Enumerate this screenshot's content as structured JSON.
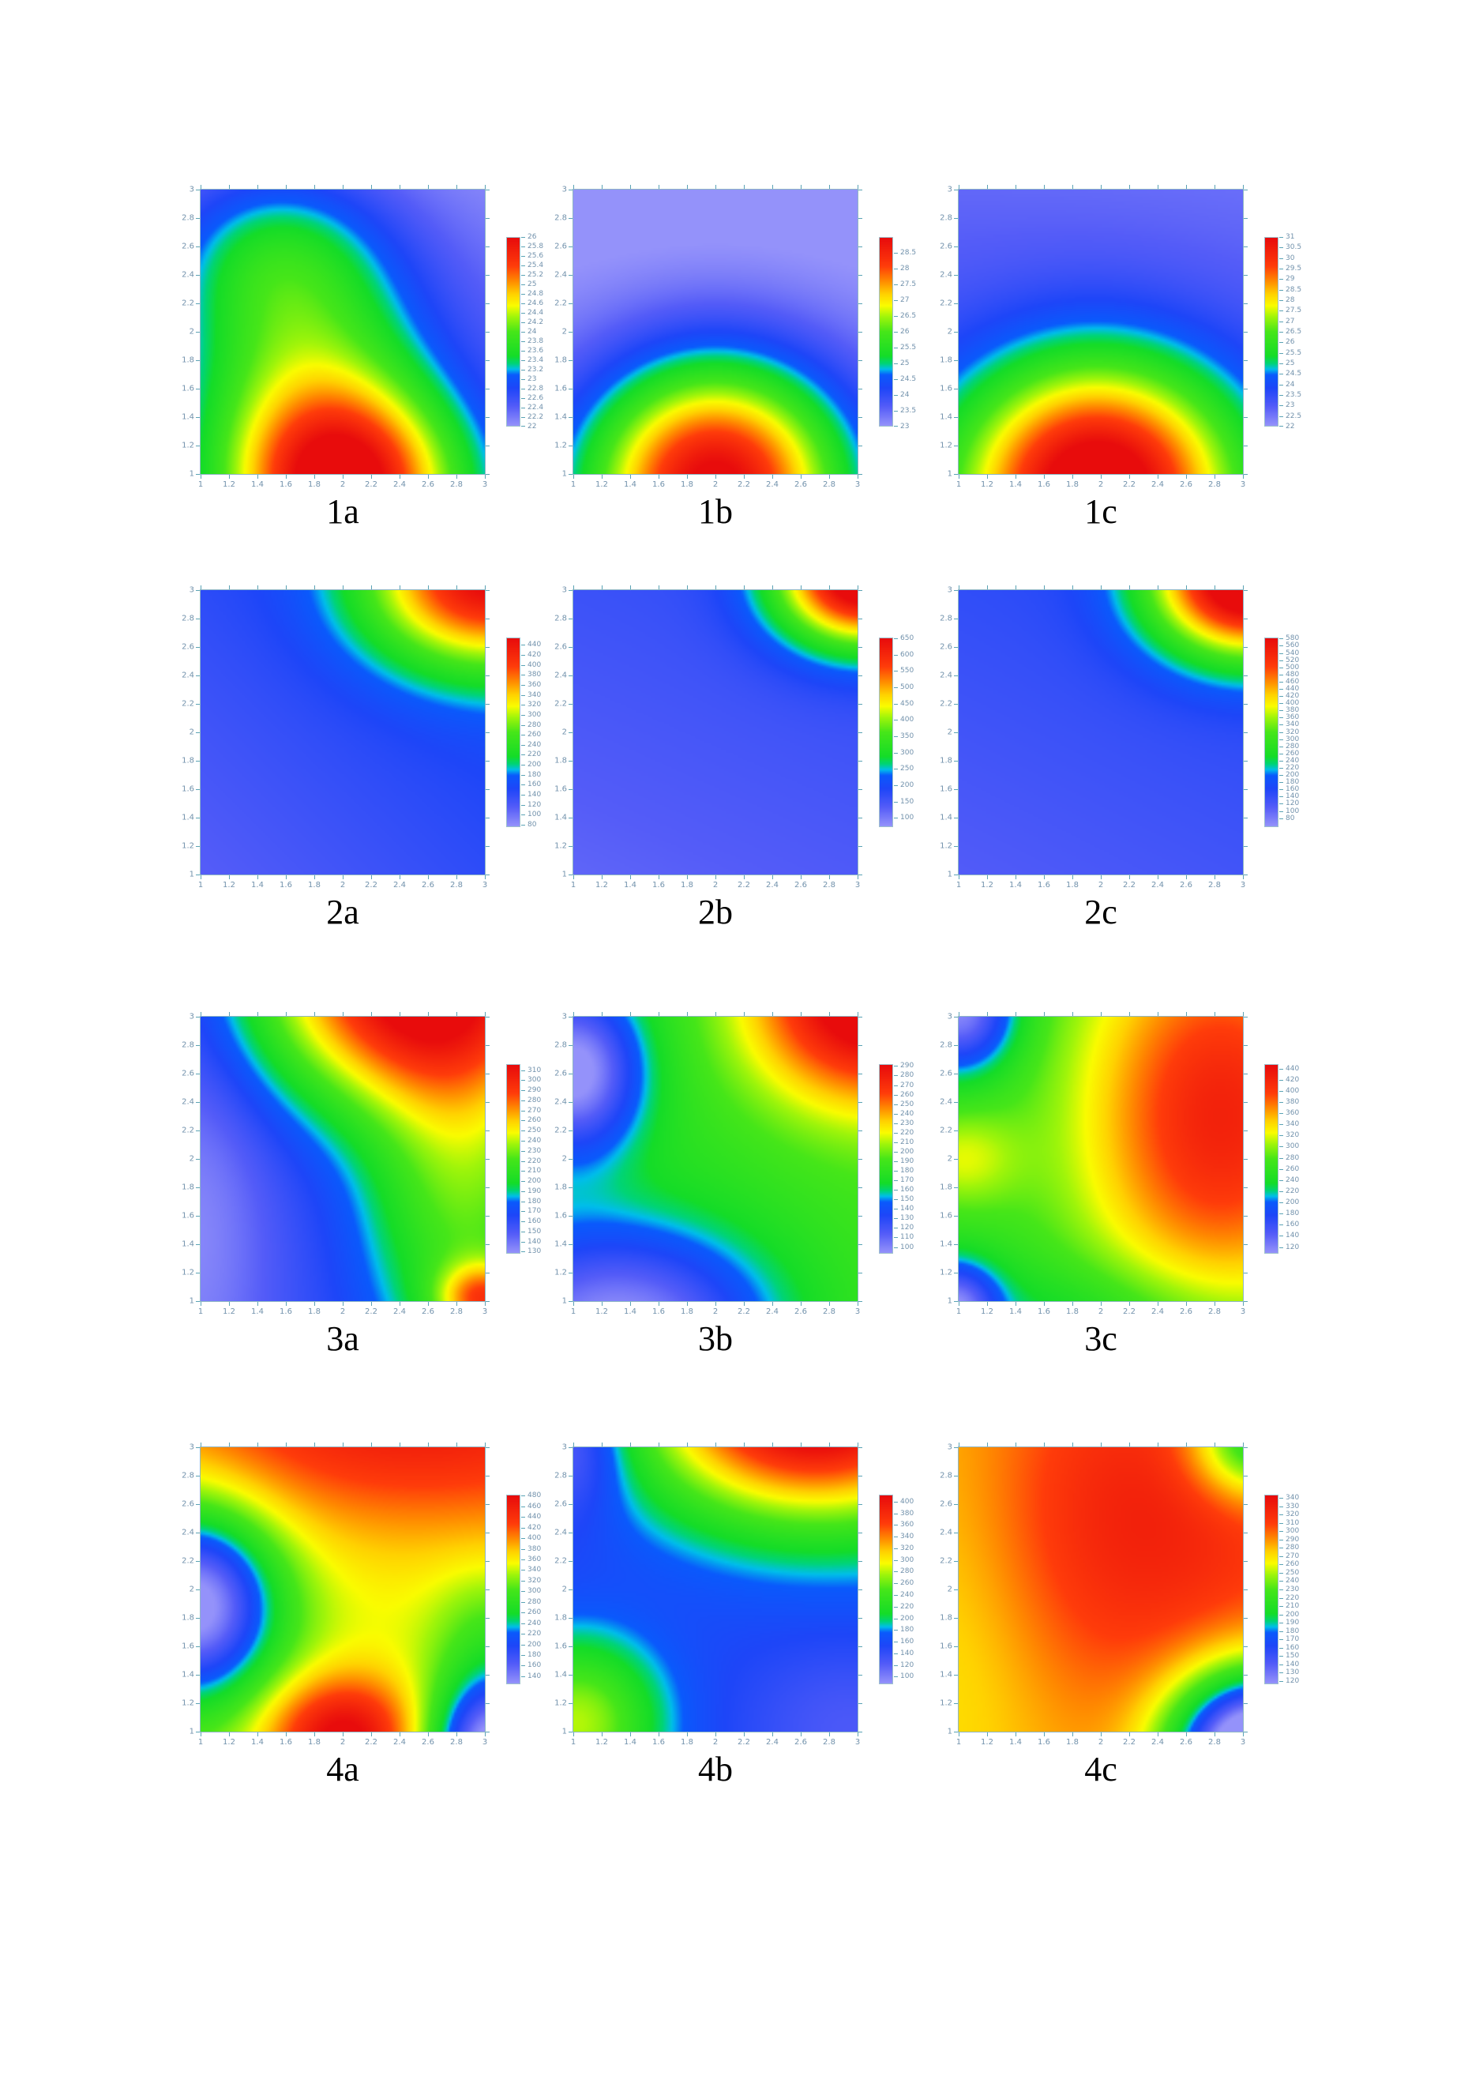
{
  "figure": {
    "background": "#ffffff",
    "tick_mark_color": "#5ba3b5",
    "tick_label_color": "#7292ac",
    "panel_label_color": "#000000"
  },
  "chart_data": {
    "type": "heatmap",
    "layout": {
      "rows": 4,
      "cols": 3
    },
    "x_range": [
      1,
      3
    ],
    "y_range": [
      1,
      3
    ],
    "x_tick_labels": [
      "1",
      "1.2",
      "1.4",
      "1.6",
      "1.8",
      "2",
      "2.2",
      "2.4",
      "2.6",
      "2.8",
      "3"
    ],
    "y_tick_labels": [
      "1",
      "1.2",
      "1.4",
      "1.6",
      "1.8",
      "2",
      "2.2",
      "2.4",
      "2.6",
      "2.8",
      "3"
    ],
    "legend_position": "right",
    "grid": false,
    "colormap": [
      {
        "t": 0.0,
        "rgb": [
          148,
          146,
          250
        ]
      },
      {
        "t": 0.1,
        "rgb": [
          84,
          92,
          248
        ]
      },
      {
        "t": 0.2,
        "rgb": [
          30,
          70,
          248
        ]
      },
      {
        "t": 0.27,
        "rgb": [
          10,
          90,
          252
        ]
      },
      {
        "t": 0.3,
        "rgb": [
          0,
          190,
          235
        ]
      },
      {
        "t": 0.33,
        "rgb": [
          0,
          212,
          120
        ]
      },
      {
        "t": 0.37,
        "rgb": [
          20,
          220,
          40
        ]
      },
      {
        "t": 0.5,
        "rgb": [
          70,
          230,
          25
        ]
      },
      {
        "t": 0.58,
        "rgb": [
          160,
          245,
          10
        ]
      },
      {
        "t": 0.64,
        "rgb": [
          250,
          252,
          0
        ]
      },
      {
        "t": 0.7,
        "rgb": [
          255,
          210,
          0
        ]
      },
      {
        "t": 0.77,
        "rgb": [
          255,
          140,
          0
        ]
      },
      {
        "t": 0.85,
        "rgb": [
          255,
          60,
          10
        ]
      },
      {
        "t": 1.0,
        "rgb": [
          232,
          12,
          12
        ]
      }
    ],
    "panels": [
      {
        "label": "1a",
        "colorbar_range": [
          22,
          26
        ],
        "colorbar_ticks": [
          "26",
          "25.8",
          "25.6",
          "25.4",
          "25.2",
          "25",
          "24.8",
          "24.6",
          "24.4",
          "24.2",
          "24",
          "23.8",
          "23.6",
          "23.4",
          "23.2",
          "23",
          "22.8",
          "22.6",
          "22.4",
          "22.2",
          "22"
        ],
        "field": {
          "base": [
            22.55,
            0,
            -0.25
          ],
          "sources": [
            [
              3.6,
              2.0,
              0.9,
              0.55,
              0.5
            ],
            [
              1.5,
              1.7,
              2.0,
              0.62,
              0.68
            ],
            [
              0.6,
              1.45,
              2.6,
              0.5,
              0.4
            ]
          ]
        }
      },
      {
        "label": "1b",
        "colorbar_range": [
          23,
          29
        ],
        "colorbar_ticks": [
          "28.5",
          "28",
          "27.5",
          "27",
          "26.5",
          "26",
          "25.5",
          "25",
          "24.5",
          "24",
          "23.5",
          "23"
        ],
        "field": {
          "base": [
            23.3,
            0,
            -0.25
          ],
          "sources": [
            [
              5.9,
              2.0,
              0.92,
              0.63,
              0.6
            ]
          ]
        }
      },
      {
        "label": "1c",
        "colorbar_range": [
          22,
          31
        ],
        "colorbar_ticks": [
          "31",
          "30.5",
          "30",
          "29.5",
          "29",
          "28.5",
          "28",
          "27.5",
          "27",
          "26.5",
          "26",
          "25.5",
          "25",
          "24.5",
          "24",
          "23.5",
          "23",
          "22.5",
          "22"
        ],
        "field": {
          "base": [
            23.4,
            -0.05,
            -0.35
          ],
          "sources": [
            [
              8.8,
              1.98,
              0.9,
              0.68,
              0.62
            ]
          ]
        }
      },
      {
        "label": "2a",
        "colorbar_range": [
          75,
          455
        ],
        "colorbar_ticks": [
          "440",
          "420",
          "400",
          "380",
          "360",
          "340",
          "320",
          "300",
          "280",
          "260",
          "240",
          "220",
          "200",
          "180",
          "160",
          "140",
          "120",
          "100",
          "80"
        ],
        "field": {
          "base": [
            112,
            14,
            14
          ],
          "sources": [
            [
              290,
              3.02,
              3.08,
              0.58,
              0.42
            ]
          ]
        }
      },
      {
        "label": "2b",
        "colorbar_range": [
          72,
          652
        ],
        "colorbar_ticks": [
          "650",
          "600",
          "550",
          "500",
          "450",
          "400",
          "350",
          "300",
          "250",
          "200",
          "150",
          "100"
        ],
        "field": {
          "base": [
            120,
            8,
            18
          ],
          "sources": [
            [
              560,
              3.05,
              3.1,
              0.42,
              0.33
            ]
          ]
        }
      },
      {
        "label": "2c",
        "colorbar_range": [
          55,
          583
        ],
        "colorbar_ticks": [
          "580",
          "560",
          "540",
          "520",
          "500",
          "480",
          "460",
          "440",
          "420",
          "400",
          "380",
          "360",
          "340",
          "320",
          "300",
          "280",
          "260",
          "240",
          "220",
          "200",
          "180",
          "160",
          "140",
          "120",
          "100",
          "80"
        ],
        "field": {
          "base": [
            110,
            8,
            16
          ],
          "sources": [
            [
              520,
              3.05,
              3.08,
              0.47,
              0.37
            ]
          ]
        }
      },
      {
        "label": "3a",
        "colorbar_range": [
          128,
          316
        ],
        "colorbar_ticks": [
          "310",
          "300",
          "290",
          "280",
          "270",
          "260",
          "250",
          "240",
          "230",
          "220",
          "210",
          "200",
          "190",
          "180",
          "170",
          "160",
          "150",
          "140",
          "130"
        ],
        "field": {
          "base": [
            150,
            8,
            0
          ],
          "sources": [
            [
              160,
              2.5,
              3.25,
              0.78,
              0.6
            ],
            [
              60,
              2.85,
              1.8,
              0.5,
              0.9
            ],
            [
              90,
              3.0,
              1.0,
              0.22,
              0.18
            ],
            [
              -18,
              1.0,
              1.5,
              0.35,
              1.0
            ]
          ]
        }
      },
      {
        "label": "3b",
        "colorbar_range": [
          93,
          292
        ],
        "colorbar_ticks": [
          "290",
          "280",
          "270",
          "260",
          "250",
          "240",
          "230",
          "220",
          "210",
          "200",
          "190",
          "180",
          "170",
          "160",
          "150",
          "140",
          "130",
          "120",
          "110",
          "100"
        ],
        "field": {
          "base": [
            175,
            6,
            0
          ],
          "sources": [
            [
              130,
              3.1,
              3.15,
              0.6,
              0.52
            ],
            [
              -90,
              1.0,
              2.62,
              0.33,
              0.4
            ],
            [
              -85,
              1.35,
              0.8,
              0.75,
              0.5
            ]
          ]
        }
      },
      {
        "label": "3c",
        "colorbar_range": [
          108,
          448
        ],
        "colorbar_ticks": [
          "440",
          "420",
          "400",
          "380",
          "360",
          "340",
          "320",
          "300",
          "280",
          "260",
          "240",
          "220",
          "200",
          "180",
          "160",
          "140",
          "120"
        ],
        "field": {
          "base": [
            255,
            0,
            0
          ],
          "sources": [
            [
              170,
              2.85,
              2.3,
              0.72,
              1.05
            ],
            [
              -145,
              1.0,
              3.05,
              0.28,
              0.3
            ],
            [
              -130,
              0.95,
              0.95,
              0.22,
              0.22
            ],
            [
              60,
              1.0,
              2.0,
              0.3,
              0.25
            ],
            [
              -45,
              2.0,
              0.8,
              1.0,
              0.35
            ]
          ]
        }
      },
      {
        "label": "4a",
        "colorbar_range": [
          125,
          482
        ],
        "colorbar_ticks": [
          "480",
          "460",
          "440",
          "420",
          "400",
          "380",
          "360",
          "340",
          "320",
          "300",
          "280",
          "260",
          "240",
          "220",
          "200",
          "180",
          "160",
          "140"
        ],
        "field": {
          "base": [
            335,
            10,
            0
          ],
          "sources": [
            [
              120,
              2.3,
              3.3,
              1.5,
              0.62
            ],
            [
              -230,
              0.95,
              1.9,
              0.42,
              0.48
            ],
            [
              150,
              2.0,
              0.95,
              0.38,
              0.3
            ],
            [
              -260,
              3.1,
              0.85,
              0.34,
              0.38
            ],
            [
              -50,
              3.05,
              1.7,
              0.3,
              0.35
            ]
          ]
        }
      },
      {
        "label": "4b",
        "colorbar_range": [
          87,
          412
        ],
        "colorbar_ticks": [
          "400",
          "380",
          "360",
          "340",
          "320",
          "300",
          "280",
          "260",
          "240",
          "220",
          "200",
          "180",
          "160",
          "140",
          "120",
          "100"
        ],
        "field": {
          "base": [
            150,
            5,
            0
          ],
          "sources": [
            [
              290,
              2.7,
              3.3,
              0.85,
              0.55
            ],
            [
              130,
              1.0,
              1.05,
              0.42,
              0.42
            ],
            [
              -55,
              1.0,
              3.05,
              0.28,
              0.35
            ],
            [
              -35,
              3.0,
              1.0,
              0.55,
              0.45
            ]
          ]
        }
      },
      {
        "label": "4c",
        "colorbar_range": [
          116,
          344
        ],
        "colorbar_ticks": [
          "340",
          "330",
          "320",
          "310",
          "300",
          "290",
          "280",
          "270",
          "260",
          "250",
          "240",
          "230",
          "220",
          "210",
          "200",
          "190",
          "180",
          "170",
          "160",
          "150",
          "140",
          "130",
          "120"
        ],
        "field": {
          "base": [
            285,
            0,
            0
          ],
          "sources": [
            [
              45,
              2.3,
              2.5,
              0.9,
              0.9
            ],
            [
              -20,
              1.0,
              1.8,
              0.5,
              1.2
            ],
            [
              -230,
              3.1,
              0.85,
              0.42,
              0.4
            ],
            [
              -95,
              3.08,
              3.05,
              0.3,
              0.28
            ]
          ]
        }
      }
    ]
  }
}
